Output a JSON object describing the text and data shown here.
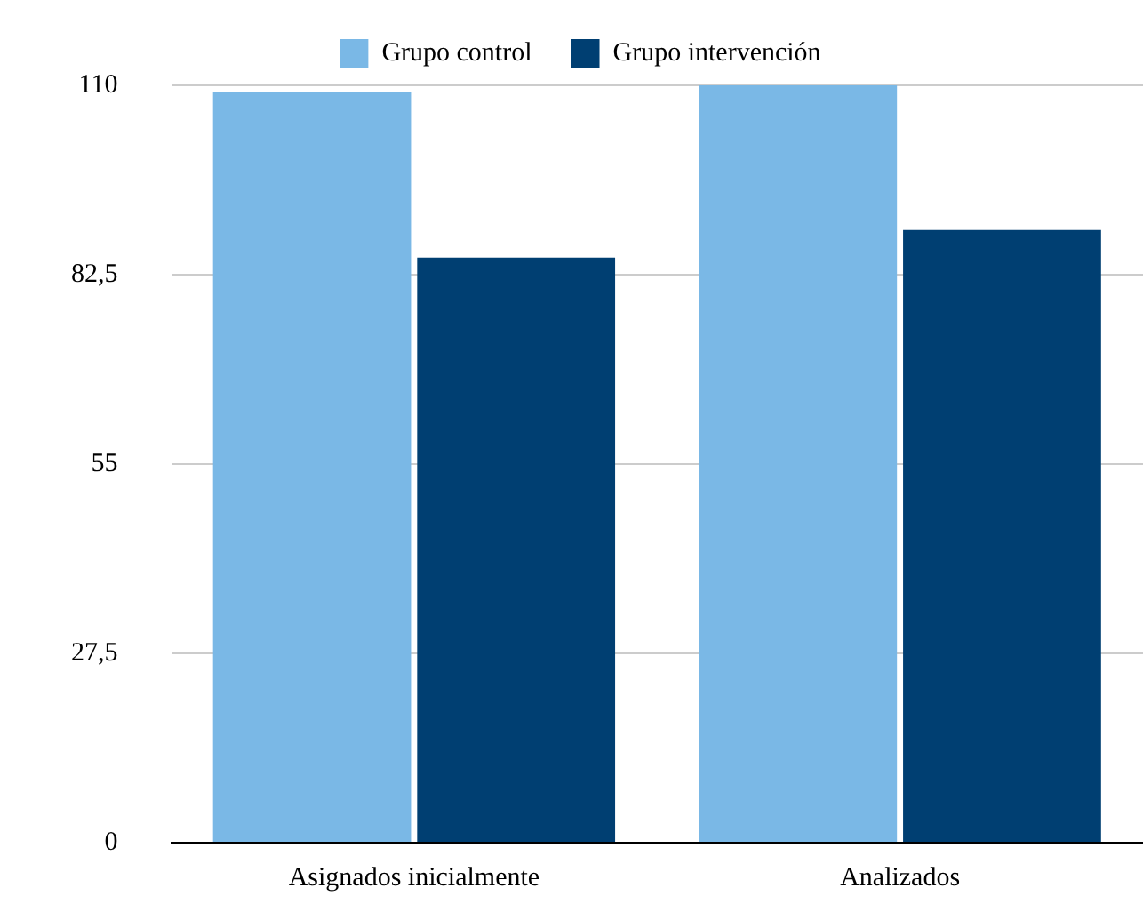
{
  "chart_data": {
    "type": "bar",
    "categories": [
      "Asignados inicialmente",
      "Analizados"
    ],
    "series": [
      {
        "name": "Grupo control",
        "color": "#7ab8e6",
        "values": [
          109,
          110
        ]
      },
      {
        "name": "Grupo intervención",
        "color": "#003f72",
        "values": [
          85,
          89
        ]
      }
    ],
    "ylim": [
      0,
      110
    ],
    "yticks": [
      0,
      {
        "value": 27.5,
        "label": "27,5"
      },
      55,
      {
        "value": 82.5,
        "label": "82,5"
      },
      110
    ],
    "grid": "y",
    "legend": "top"
  }
}
